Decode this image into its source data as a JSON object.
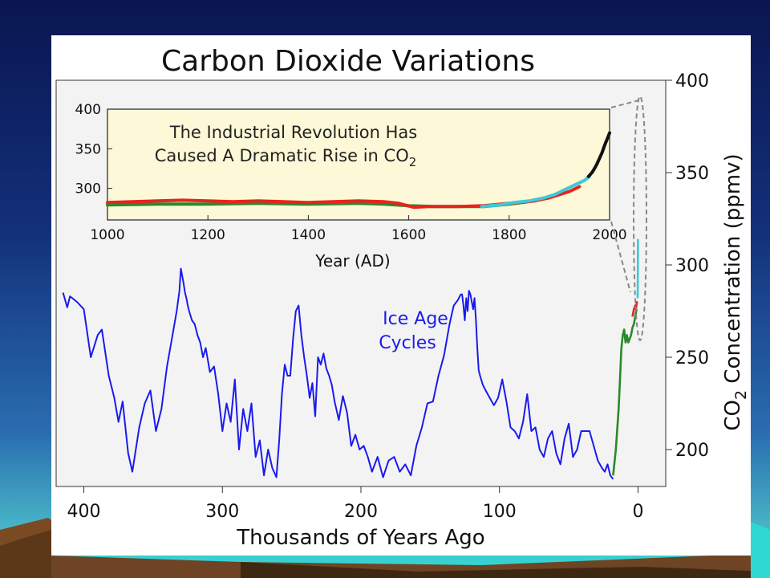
{
  "colors": {
    "ice_age_line": "#1a1aee",
    "law_dome": "#2a8a2a",
    "ice_core_red": "#e8231e",
    "siple_cyan": "#3ec8d8",
    "mauna_loa": "#111111",
    "inset_bg": "#fdf8d7",
    "outer_plot_bg": "#f3f3f3"
  },
  "chart_data": [
    {
      "type": "line",
      "title": "Carbon Dioxide Variations",
      "xlabel": "Thousands of Years Ago",
      "ylabel": "CO2 Concentration (ppmv)",
      "ylabel_parts": {
        "main": "CO",
        "sub": "2",
        "rest": " Concentration (ppmv)"
      },
      "xlim": [
        420,
        -20
      ],
      "ylim": [
        180,
        400
      ],
      "x_ticks": [
        400,
        300,
        200,
        100,
        0
      ],
      "y_ticks": [
        400,
        350,
        300,
        250,
        200
      ],
      "annotation": {
        "line1": "Ice Age",
        "line2": "Cycles"
      },
      "series": [
        {
          "color_key": "ice_age_line",
          "x": [
            415,
            412,
            410,
            405,
            400,
            395,
            390,
            387,
            382,
            378,
            375,
            372,
            368,
            365,
            360,
            356,
            352,
            348,
            344,
            340,
            336,
            333,
            331,
            330,
            328,
            327,
            326,
            325,
            324,
            322,
            320,
            318,
            316,
            314,
            312,
            309,
            306,
            303,
            300,
            297,
            294,
            291,
            288,
            285,
            282,
            279,
            276,
            273,
            270,
            267,
            264,
            261,
            259,
            257,
            255,
            253,
            251,
            249,
            247,
            245,
            243,
            241,
            239,
            237,
            235,
            233,
            231,
            229,
            227,
            225,
            223,
            221,
            219,
            216,
            213,
            210,
            207,
            204,
            201,
            198,
            195,
            192,
            188,
            184,
            180,
            176,
            172,
            168,
            164,
            160,
            156,
            152,
            148,
            144,
            140,
            136,
            133,
            130,
            128,
            127,
            126,
            125,
            124,
            123,
            122,
            121,
            120,
            119,
            118,
            117,
            116,
            115,
            114,
            112,
            110,
            107,
            104,
            101,
            98,
            95,
            92,
            89,
            86,
            83,
            80,
            77,
            74,
            71,
            68,
            65,
            62,
            59,
            56,
            53,
            50,
            47,
            44,
            41,
            38,
            35,
            32,
            29,
            26,
            24,
            22,
            20,
            18
          ],
          "y": [
            285,
            277,
            283,
            280,
            276,
            250,
            262,
            265,
            240,
            228,
            215,
            226,
            198,
            188,
            212,
            225,
            232,
            210,
            222,
            245,
            262,
            275,
            286,
            298,
            290,
            285,
            282,
            278,
            275,
            270,
            268,
            262,
            258,
            250,
            255,
            242,
            245,
            230,
            210,
            225,
            215,
            238,
            200,
            222,
            210,
            225,
            196,
            205,
            186,
            200,
            190,
            185,
            205,
            230,
            246,
            240,
            240,
            260,
            275,
            278,
            262,
            250,
            240,
            228,
            236,
            218,
            250,
            246,
            252,
            244,
            240,
            235,
            226,
            216,
            229,
            220,
            202,
            208,
            200,
            202,
            196,
            188,
            196,
            185,
            194,
            196,
            188,
            192,
            186,
            202,
            212,
            225,
            226,
            240,
            251,
            268,
            278,
            281,
            284,
            284,
            278,
            270,
            282,
            275,
            286,
            284,
            280,
            276,
            282,
            270,
            255,
            243,
            240,
            235,
            232,
            228,
            224,
            228,
            238,
            226,
            212,
            210,
            206,
            215,
            230,
            210,
            212,
            200,
            196,
            206,
            210,
            198,
            192,
            206,
            214,
            196,
            200,
            210,
            210,
            210,
            202,
            194,
            190,
            188,
            192,
            186,
            184
          ]
        },
        {
          "color_key": "law_dome",
          "x": [
            18,
            16,
            14,
            13,
            12,
            11,
            10,
            9,
            8,
            7,
            6,
            5,
            4,
            3,
            2,
            1
          ],
          "y": [
            186,
            200,
            222,
            238,
            255,
            262,
            265,
            258,
            262,
            258,
            260,
            262,
            266,
            268,
            272,
            276
          ]
        },
        {
          "color_key": "ice_core_red",
          "x": [
            4,
            3,
            2,
            1.5,
            1,
            0.6,
            0.3
          ],
          "y": [
            272,
            276,
            278,
            276,
            279,
            280,
            280
          ]
        },
        {
          "color_key": "siple_cyan",
          "x": [
            0.3,
            0.2,
            0.15,
            0.1,
            0.06
          ],
          "y": [
            282,
            286,
            295,
            305,
            314
          ]
        }
      ]
    },
    {
      "type": "line",
      "title": "The Industrial Revolution Has Caused A Dramatic Rise in CO2",
      "title_parts": {
        "line1": "The Industrial Revolution Has",
        "line2_main": "Caused A Dramatic Rise in CO",
        "line2_sub": "2"
      },
      "xlabel": "Year (AD)",
      "ylabel": "",
      "xlim": [
        1000,
        2000
      ],
      "ylim": [
        260,
        400
      ],
      "x_ticks": [
        1000,
        1200,
        1400,
        1600,
        1800,
        2000
      ],
      "y_ticks": [
        400,
        350,
        300
      ],
      "series": [
        {
          "color_key": "law_dome",
          "x": [
            1000,
            1100,
            1200,
            1300,
            1400,
            1500,
            1550,
            1600,
            1650,
            1700,
            1750,
            1800,
            1850
          ],
          "y": [
            279,
            280,
            280,
            281,
            280,
            281,
            280,
            278,
            277,
            277,
            277,
            280,
            284
          ]
        },
        {
          "color_key": "ice_core_red",
          "x": [
            1000,
            1050,
            1100,
            1150,
            1200,
            1250,
            1300,
            1350,
            1400,
            1450,
            1500,
            1550,
            1580,
            1610,
            1640,
            1700,
            1750,
            1800,
            1850,
            1880,
            1900,
            1920,
            1940
          ],
          "y": [
            282,
            283,
            284,
            285,
            284,
            283,
            284,
            283,
            282,
            283,
            284,
            283,
            281,
            276,
            277,
            277,
            278,
            281,
            284,
            288,
            292,
            296,
            302
          ]
        },
        {
          "color_key": "siple_cyan",
          "x": [
            1745,
            1780,
            1810,
            1840,
            1870,
            1890,
            1910,
            1930,
            1950,
            1960
          ],
          "y": [
            277,
            279,
            282,
            284,
            288,
            292,
            298,
            304,
            310,
            315
          ]
        },
        {
          "color_key": "mauna_loa",
          "x": [
            1958,
            1965,
            1970,
            1975,
            1980,
            1985,
            1990,
            1995,
            2000
          ],
          "y": [
            315,
            320,
            325,
            331,
            338,
            345,
            354,
            362,
            370
          ]
        }
      ]
    }
  ]
}
